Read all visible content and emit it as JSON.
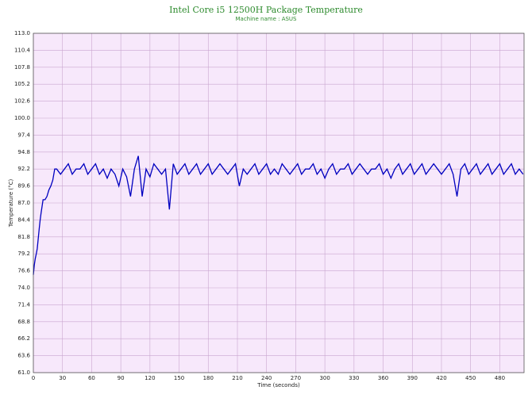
{
  "chart_data": {
    "type": "line",
    "title": "Intel Core i5 12500H Package Temperature",
    "subtitle": "Machine name : ASUS",
    "x_label": "Time (seconds)",
    "y_label": "Temperature (°C)",
    "xlim": [
      0,
      505
    ],
    "xticks": [
      0,
      30,
      60,
      90,
      120,
      150,
      180,
      210,
      240,
      270,
      300,
      330,
      360,
      390,
      420,
      450,
      480
    ],
    "ylim": [
      61,
      113
    ],
    "yticks": [
      {
        "value": 61,
        "label": "61.0"
      },
      63.6,
      66.2,
      68.8,
      71.4,
      {
        "value": 74,
        "label": "74.0"
      },
      76.6,
      79.2,
      81.8,
      84.4,
      {
        "value": 87,
        "label": "87.0"
      },
      89.6,
      92.2,
      94.8,
      97.4,
      {
        "value": 100,
        "label": "100.0"
      },
      102.6,
      105.2,
      107.8,
      110.4,
      {
        "value": 113,
        "label": "113.0"
      }
    ],
    "grid": true,
    "x": [
      0,
      1,
      2,
      3,
      4,
      5,
      6,
      7,
      8,
      9,
      10,
      12,
      14,
      16,
      18,
      20,
      22,
      24,
      28,
      32,
      36,
      40,
      44,
      48,
      52,
      56,
      60,
      64,
      68,
      72,
      76,
      80,
      84,
      88,
      92,
      96,
      100,
      104,
      108,
      112,
      116,
      120,
      124,
      128,
      132,
      136,
      140,
      144,
      148,
      152,
      156,
      160,
      164,
      168,
      172,
      176,
      180,
      184,
      188,
      192,
      196,
      200,
      204,
      208,
      212,
      216,
      220,
      224,
      228,
      232,
      236,
      240,
      244,
      248,
      252,
      256,
      260,
      264,
      268,
      272,
      276,
      280,
      284,
      288,
      292,
      296,
      300,
      304,
      308,
      312,
      316,
      320,
      324,
      328,
      332,
      336,
      340,
      344,
      348,
      352,
      356,
      360,
      364,
      368,
      372,
      376,
      380,
      384,
      388,
      392,
      396,
      400,
      404,
      408,
      412,
      416,
      420,
      424,
      428,
      432,
      436,
      440,
      444,
      448,
      452,
      456,
      460,
      464,
      468,
      472,
      476,
      480,
      484,
      488,
      492,
      496,
      500,
      504
    ],
    "series": [
      {
        "name": "Package Temperature",
        "color": "#0000c0",
        "values": [
          76.0,
          77.5,
          78.5,
          79.2,
          80.0,
          81.5,
          83.0,
          84.4,
          85.5,
          86.5,
          87.5,
          87.5,
          88.0,
          89.0,
          89.6,
          90.5,
          92.2,
          92.2,
          91.4,
          92.2,
          93.0,
          91.4,
          92.2,
          92.2,
          93.0,
          91.4,
          92.2,
          93.0,
          91.4,
          92.2,
          90.8,
          92.2,
          91.4,
          89.6,
          92.2,
          91.0,
          88.0,
          92.2,
          94.2,
          88.0,
          92.2,
          91.0,
          93.0,
          92.2,
          91.4,
          92.2,
          86.0,
          93.0,
          91.4,
          92.2,
          93.0,
          91.4,
          92.2,
          93.0,
          91.4,
          92.2,
          93.0,
          91.4,
          92.2,
          93.0,
          92.2,
          91.4,
          92.2,
          93.0,
          89.6,
          92.2,
          91.4,
          92.2,
          93.0,
          91.4,
          92.2,
          93.0,
          91.4,
          92.2,
          91.4,
          93.0,
          92.2,
          91.4,
          92.2,
          93.0,
          91.4,
          92.2,
          92.2,
          93.0,
          91.4,
          92.2,
          90.8,
          92.2,
          93.0,
          91.4,
          92.2,
          92.2,
          93.0,
          91.4,
          92.2,
          93.0,
          92.2,
          91.4,
          92.2,
          92.2,
          93.0,
          91.4,
          92.2,
          90.8,
          92.2,
          93.0,
          91.4,
          92.2,
          93.0,
          91.4,
          92.2,
          93.0,
          91.4,
          92.2,
          93.0,
          92.2,
          91.4,
          92.2,
          93.0,
          91.4,
          88.0,
          92.2,
          93.0,
          91.4,
          92.2,
          93.0,
          91.4,
          92.2,
          93.0,
          91.4,
          92.2,
          93.0,
          91.4,
          92.2,
          93.0,
          91.4,
          92.2,
          91.4
        ]
      }
    ]
  }
}
